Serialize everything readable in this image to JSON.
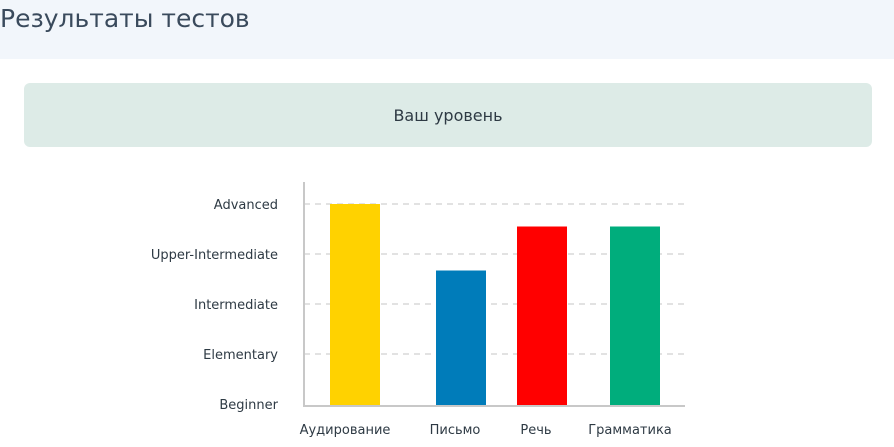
{
  "header": {
    "title": "Результаты тестов"
  },
  "level_card": {
    "label": "Ваш уровень"
  },
  "chart_data": {
    "type": "bar",
    "categories": [
      "Аудирование",
      "Письмо",
      "Речь",
      "Грамматика"
    ],
    "levels": [
      "Beginner",
      "Elementary",
      "Intermediate",
      "Upper-Intermediate",
      "Advanced"
    ],
    "values": [
      4.0,
      2.67,
      3.55,
      3.55
    ],
    "ylim": [
      0,
      4
    ],
    "grid": true,
    "colors": [
      "#ffd200",
      "#007cba",
      "#ff0000",
      "#00ad7c"
    ],
    "title": "",
    "xlabel": "",
    "ylabel": ""
  }
}
